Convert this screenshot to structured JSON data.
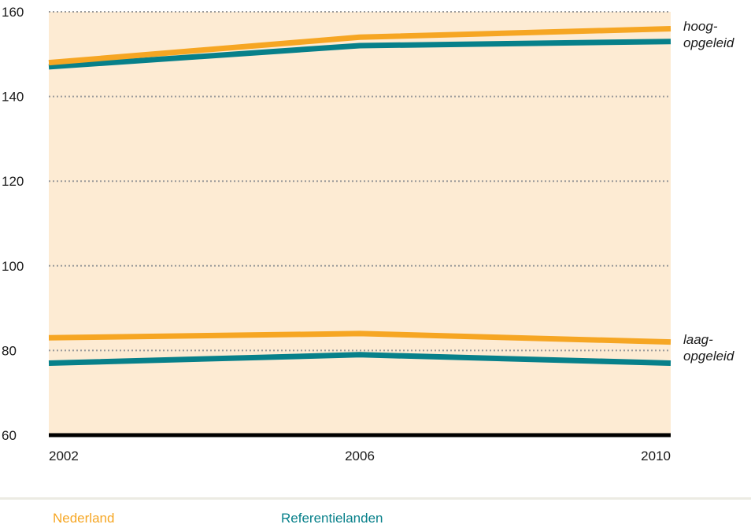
{
  "chart_data": {
    "type": "line",
    "x": [
      2002,
      2006,
      2010
    ],
    "xlabel": "",
    "ylabel": "",
    "ylim": [
      60,
      160
    ],
    "yticks": [
      60,
      80,
      100,
      120,
      140,
      160
    ],
    "xtick_labels": [
      "2002",
      "2006",
      "2010"
    ],
    "ytick_labels": [
      "60",
      "80",
      "100",
      "120",
      "140",
      "160"
    ],
    "grid": "horizontal dotted",
    "background_color": "#fdebd3",
    "series": [
      {
        "name": "Nederland",
        "group": "hoog",
        "color": "#f6a623",
        "values": [
          148,
          154,
          156
        ]
      },
      {
        "name": "Referentielanden",
        "group": "hoog",
        "color": "#07808a",
        "values": [
          147,
          152,
          153
        ]
      },
      {
        "name": "Nederland",
        "group": "laag",
        "color": "#f6a623",
        "values": [
          83,
          84,
          82
        ]
      },
      {
        "name": "Referentielanden",
        "group": "laag",
        "color": "#07808a",
        "values": [
          77,
          79,
          77
        ]
      }
    ],
    "annotations": [
      {
        "lines": [
          "hoog-",
          "opgeleid"
        ]
      },
      {
        "lines": [
          "laag-",
          "opgeleid"
        ]
      }
    ],
    "legend": {
      "placement": "bottom",
      "entries": [
        {
          "label": "Nederland",
          "color": "#f6a623"
        },
        {
          "label": "Referentielanden",
          "color": "#07808a"
        }
      ]
    }
  }
}
